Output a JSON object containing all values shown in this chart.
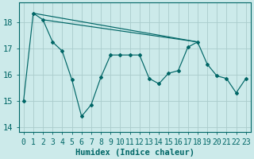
{
  "xlabel": "Humidex (Indice chaleur)",
  "xlim": [
    -0.5,
    23.5
  ],
  "ylim": [
    13.8,
    18.75
  ],
  "yticks": [
    14,
    15,
    16,
    17,
    18
  ],
  "xticks": [
    0,
    1,
    2,
    3,
    4,
    5,
    6,
    7,
    8,
    9,
    10,
    11,
    12,
    13,
    14,
    15,
    16,
    17,
    18,
    19,
    20,
    21,
    22,
    23
  ],
  "bg_color": "#cceaea",
  "grid_color": "#aacccc",
  "line_color": "#006666",
  "line1_x": [
    0,
    1,
    2,
    3,
    4,
    5,
    6,
    7,
    8,
    9,
    10,
    11,
    12,
    13,
    14,
    15,
    16,
    17,
    18,
    19,
    20,
    21,
    22,
    23
  ],
  "line1_y": [
    15.0,
    18.35,
    18.1,
    17.25,
    16.9,
    15.8,
    14.4,
    14.85,
    15.9,
    16.75,
    16.75,
    16.75,
    16.75,
    15.85,
    15.65,
    16.05,
    16.15,
    17.05,
    17.25,
    16.4,
    15.95,
    15.85,
    15.3,
    15.85
  ],
  "line2_x": [
    1,
    18
  ],
  "line2_y": [
    18.35,
    17.25
  ],
  "line3_x": [
    2,
    18
  ],
  "line3_y": [
    18.1,
    17.25
  ],
  "xlabel_fontsize": 7.5,
  "tick_fontsize": 7.0
}
